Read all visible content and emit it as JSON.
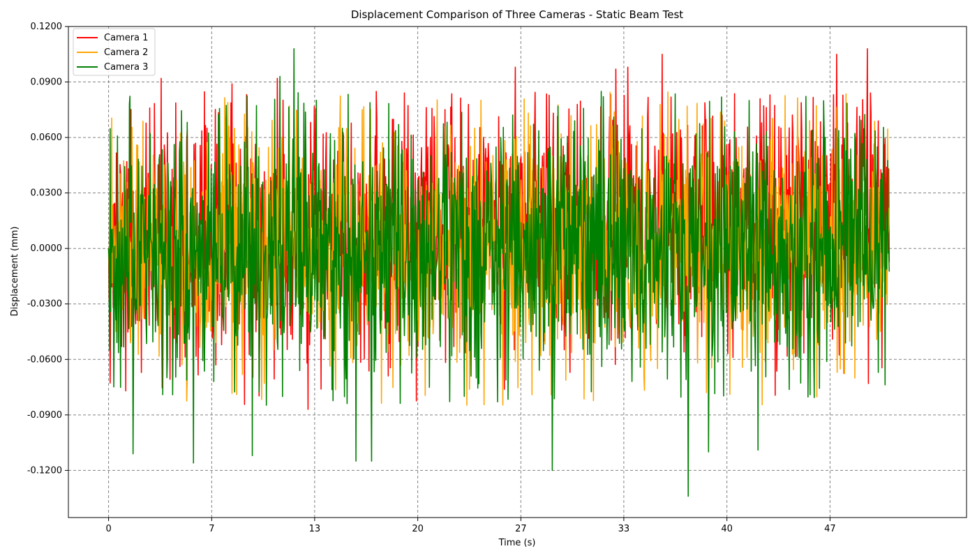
{
  "chart_data": {
    "type": "line",
    "title": "Displacement Comparison of Three Cameras - Static Beam Test",
    "xlabel": "Time (s)",
    "ylabel": "Displacement (mm)",
    "xlim": [
      -2.6,
      55.5
    ],
    "ylim": [
      -0.1455,
      0.12
    ],
    "x_ticks": [
      0,
      6.67,
      13.33,
      20,
      26.67,
      33.33,
      40,
      46.67
    ],
    "x_tick_labels": [
      "0",
      "7",
      "13",
      "20",
      "27",
      "33",
      "40",
      "47"
    ],
    "y_ticks": [
      -0.12,
      -0.09,
      -0.06,
      -0.03,
      0.0,
      0.03,
      0.06,
      0.09,
      0.12
    ],
    "y_tick_labels": [
      "-0.1200",
      "-0.0900",
      "-0.0600",
      "-0.0300",
      "0.0000",
      "0.0300",
      "0.0600",
      "0.0900",
      "0.1200"
    ],
    "grid": true,
    "legend_position": "top-left",
    "sampling": {
      "t_start": 0,
      "t_end": 50.5,
      "n_points": 1500
    },
    "series": [
      {
        "name": "Camera 1",
        "color": "#ff0000",
        "amplitude_sd": 0.033,
        "drift_start": 0.0,
        "drift_end": 0.022,
        "seed": 11,
        "peaks": [
          [
            3.4,
            0.092
          ],
          [
            8.0,
            0.089
          ],
          [
            10.9,
            0.092
          ],
          [
            26.3,
            0.098
          ],
          [
            32.8,
            0.097
          ],
          [
            33.6,
            0.098
          ],
          [
            35.8,
            0.105
          ],
          [
            47.1,
            0.105
          ],
          [
            49.1,
            0.108
          ],
          [
            1.1,
            -0.077
          ],
          [
            12.9,
            -0.087
          ],
          [
            28.2,
            -0.05
          ]
        ]
      },
      {
        "name": "Camera 2",
        "color": "#ffa500",
        "amplitude_sd": 0.032,
        "drift_start": 0.0,
        "drift_end": 0.0,
        "seed": 23,
        "peaks": []
      },
      {
        "name": "Camera 3",
        "color": "#008000",
        "amplitude_sd": 0.036,
        "drift_start": 0.0,
        "drift_end": 0.0,
        "seed": 37,
        "peaks": [
          [
            12.0,
            0.108
          ],
          [
            11.1,
            0.093
          ],
          [
            5.5,
            -0.116
          ],
          [
            9.3,
            -0.112
          ],
          [
            16.0,
            -0.115
          ],
          [
            17.0,
            -0.115
          ],
          [
            28.7,
            -0.12
          ],
          [
            37.5,
            -0.134
          ],
          [
            38.8,
            -0.11
          ],
          [
            1.6,
            -0.111
          ],
          [
            42.0,
            -0.109
          ]
        ]
      }
    ]
  }
}
